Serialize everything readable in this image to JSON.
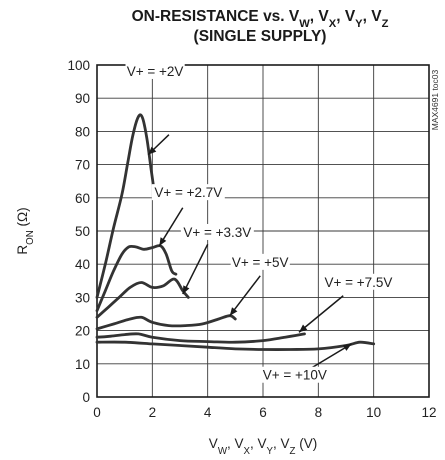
{
  "chart_data": {
    "type": "line",
    "title_lines": [
      {
        "main": "ON-RESISTANCE vs. V",
        "parts": [
          {
            "t": "ON-RESISTANCE vs. V"
          },
          {
            "t": "W",
            "sub": true
          },
          {
            "t": ", V"
          },
          {
            "t": "X",
            "sub": true
          },
          {
            "t": ", V"
          },
          {
            "t": "Y",
            "sub": true
          },
          {
            "t": ", V"
          },
          {
            "t": "Z",
            "sub": true
          }
        ]
      },
      {
        "main": "(SINGLE SUPPLY)",
        "parts": [
          {
            "t": "(SINGLE SUPPLY)"
          }
        ]
      }
    ],
    "xlabel_parts": [
      {
        "t": "V"
      },
      {
        "t": "W",
        "sub": true
      },
      {
        "t": ", V"
      },
      {
        "t": "X",
        "sub": true
      },
      {
        "t": ", V"
      },
      {
        "t": "Y",
        "sub": true
      },
      {
        "t": ", V"
      },
      {
        "t": "Z",
        "sub": true
      },
      {
        "t": " (V)"
      }
    ],
    "ylabel_parts": [
      {
        "t": "R"
      },
      {
        "t": "ON",
        "sub": true
      },
      {
        "t": " (Ω)"
      }
    ],
    "side_note": "MAX4691 toc03",
    "xlim": [
      0,
      12
    ],
    "ylim": [
      0,
      100
    ],
    "xticks": [
      0,
      2,
      4,
      6,
      8,
      10,
      12
    ],
    "yticks": [
      0,
      10,
      20,
      30,
      40,
      50,
      60,
      70,
      80,
      90,
      100
    ],
    "grid": true,
    "series": [
      {
        "name": "V+ = +2V",
        "points": [
          [
            0,
            30
          ],
          [
            0.3,
            40
          ],
          [
            0.6,
            51
          ],
          [
            0.9,
            61
          ],
          [
            1.1,
            70
          ],
          [
            1.3,
            79
          ],
          [
            1.5,
            84.5
          ],
          [
            1.65,
            84
          ],
          [
            1.8,
            78
          ],
          [
            1.95,
            69
          ],
          [
            2.05,
            63
          ]
        ],
        "label": {
          "text": "V+ = +2V",
          "at": [
            2.1,
            97
          ]
        },
        "arrow": {
          "from": [
            2.6,
            79
          ],
          "to": [
            1.85,
            73
          ]
        }
      },
      {
        "name": "V+ = +2.7V",
        "points": [
          [
            0,
            26
          ],
          [
            0.3,
            32
          ],
          [
            0.6,
            38
          ],
          [
            0.9,
            43
          ],
          [
            1.15,
            45.2
          ],
          [
            1.4,
            45.2
          ],
          [
            1.7,
            44.5
          ],
          [
            2.0,
            45
          ],
          [
            2.3,
            45.5
          ],
          [
            2.5,
            43
          ],
          [
            2.7,
            38
          ],
          [
            2.85,
            37
          ]
        ],
        "label": {
          "text": "V+ = +2.7V",
          "at": [
            3.3,
            60.5
          ]
        },
        "arrow": {
          "from": [
            3.1,
            57
          ],
          "to": [
            2.25,
            45.5
          ]
        }
      },
      {
        "name": "V+ = +3.3V",
        "points": [
          [
            0,
            24
          ],
          [
            0.4,
            27
          ],
          [
            0.8,
            30
          ],
          [
            1.2,
            33
          ],
          [
            1.6,
            34.5
          ],
          [
            2.0,
            33
          ],
          [
            2.4,
            33.5
          ],
          [
            2.8,
            35.5
          ],
          [
            3.1,
            32
          ],
          [
            3.3,
            30
          ]
        ],
        "label": {
          "text": "V+ = +3.3V",
          "at": [
            4.35,
            48.5
          ]
        },
        "arrow": {
          "from": [
            4.0,
            46
          ],
          "to": [
            3.1,
            31
          ]
        }
      },
      {
        "name": "V+ = +5V",
        "points": [
          [
            0,
            20.5
          ],
          [
            0.6,
            22
          ],
          [
            1.2,
            23.5
          ],
          [
            1.6,
            24
          ],
          [
            2.0,
            22.5
          ],
          [
            2.6,
            21.5
          ],
          [
            3.2,
            21.5
          ],
          [
            3.8,
            22
          ],
          [
            4.4,
            23.5
          ],
          [
            4.8,
            24.5
          ],
          [
            5.0,
            23.5
          ]
        ],
        "label": {
          "text": "V+ = +5V",
          "at": [
            5.9,
            39.5
          ]
        },
        "arrow": {
          "from": [
            5.9,
            36.5
          ],
          "to": [
            4.8,
            24.5
          ]
        }
      },
      {
        "name": "V+ = +7.5V",
        "points": [
          [
            0,
            18
          ],
          [
            0.5,
            18.3
          ],
          [
            1.0,
            18.8
          ],
          [
            1.5,
            19
          ],
          [
            2.0,
            18
          ],
          [
            3.0,
            17
          ],
          [
            4.0,
            16.7
          ],
          [
            5.0,
            16.5
          ],
          [
            6.0,
            17
          ],
          [
            6.8,
            18
          ],
          [
            7.5,
            19
          ]
        ],
        "label": {
          "text": "V+ = +7.5V",
          "at": [
            9.45,
            33.5
          ]
        },
        "arrow": {
          "from": [
            8.9,
            30.5
          ],
          "to": [
            7.3,
            19.5
          ]
        }
      },
      {
        "name": "V+ = +10V",
        "points": [
          [
            0,
            16.5
          ],
          [
            1.0,
            16.5
          ],
          [
            2.0,
            16
          ],
          [
            3.0,
            15.5
          ],
          [
            4.0,
            15
          ],
          [
            5.0,
            14.5
          ],
          [
            6.0,
            14.3
          ],
          [
            7.0,
            14.3
          ],
          [
            8.0,
            14.5
          ],
          [
            9.0,
            15.5
          ],
          [
            9.5,
            16.5
          ],
          [
            10.0,
            16
          ]
        ],
        "label": {
          "text": "V+ = +10V",
          "at": [
            7.15,
            5.5
          ]
        },
        "arrow": {
          "from": [
            7.5,
            7.5
          ],
          "to": [
            9.2,
            16
          ]
        }
      }
    ]
  }
}
